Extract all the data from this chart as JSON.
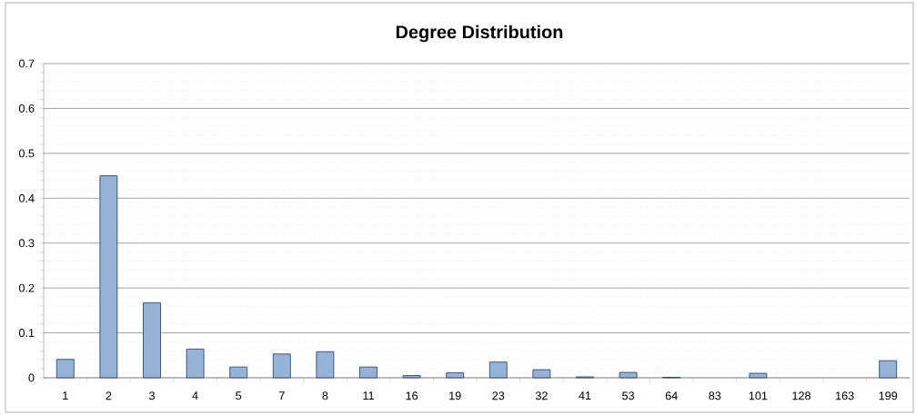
{
  "chart_data": {
    "type": "bar",
    "title": "Degree Distribution",
    "categories": [
      "1",
      "2",
      "3",
      "4",
      "5",
      "7",
      "8",
      "11",
      "16",
      "19",
      "23",
      "32",
      "41",
      "53",
      "64",
      "83",
      "101",
      "128",
      "163",
      "199"
    ],
    "values": [
      0.041,
      0.45,
      0.167,
      0.064,
      0.024,
      0.053,
      0.058,
      0.024,
      0.005,
      0.011,
      0.035,
      0.018,
      0.002,
      0.012,
      0.001,
      0,
      0.01,
      0,
      0,
      0.038
    ],
    "color": "#95b3d7",
    "ylim": [
      0,
      0.7
    ],
    "yticks": [
      0,
      0.1,
      0.2,
      0.3,
      0.4,
      0.5,
      0.6,
      0.7
    ],
    "grid": "y"
  }
}
